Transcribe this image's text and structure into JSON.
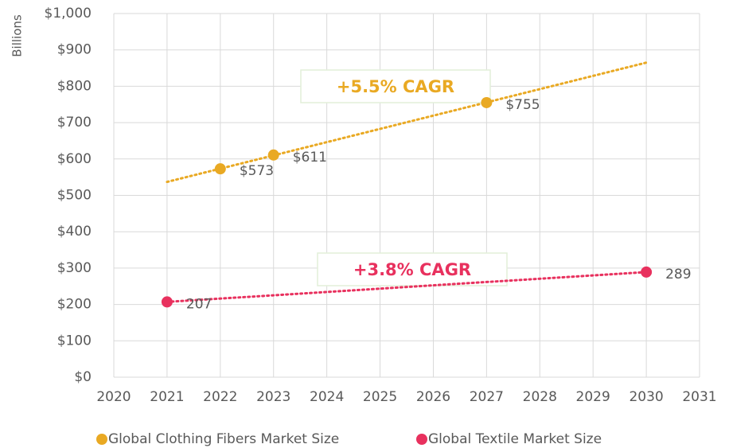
{
  "chart_data": {
    "type": "scatter",
    "y_label": "Billions",
    "xlim": [
      2020,
      2031
    ],
    "xticks": [
      2020,
      2021,
      2022,
      2023,
      2024,
      2025,
      2026,
      2027,
      2028,
      2029,
      2030,
      2031
    ],
    "ylim": [
      0,
      1000
    ],
    "yticks": [
      {
        "value": 0,
        "label": "$0"
      },
      {
        "value": 100,
        "label": "$100"
      },
      {
        "value": 200,
        "label": "$200"
      },
      {
        "value": 300,
        "label": "$300"
      },
      {
        "value": 400,
        "label": "$400"
      },
      {
        "value": 500,
        "label": "$500"
      },
      {
        "value": 600,
        "label": "$600"
      },
      {
        "value": 700,
        "label": "$700"
      },
      {
        "value": 800,
        "label": "$800"
      },
      {
        "value": 900,
        "label": "$900"
      },
      {
        "value": 1000,
        "label": "$1,000"
      }
    ],
    "grid": true,
    "legend": "bottom",
    "series": [
      {
        "name": "Global Clothing Fibers Market Size",
        "color": "#e9a923",
        "x": [
          2022,
          2023,
          2027
        ],
        "values": [
          573,
          611,
          755
        ],
        "value_labels": [
          "$573",
          "$611",
          "$755"
        ],
        "trend_x": [
          2021,
          2030
        ],
        "trend_values": [
          537,
          865
        ]
      },
      {
        "name": "Global Textile Market Size",
        "color": "#e8315e",
        "x": [
          2021,
          2030
        ],
        "values": [
          207,
          289
        ],
        "trend_x": [
          2021,
          2030
        ],
        "trend_values": [
          207,
          289
        ]
      }
    ],
    "annotations": [
      {
        "text": "+5.5% CAGR",
        "color": "#e9a923"
      },
      {
        "text": "+3.8% CAGR",
        "color": "#e8315e"
      }
    ]
  }
}
